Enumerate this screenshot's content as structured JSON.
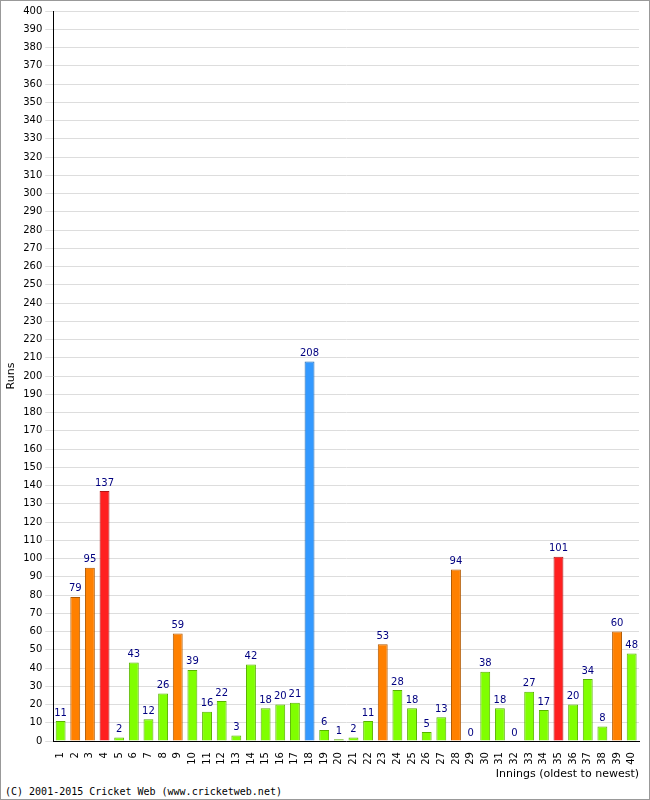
{
  "chart_data": {
    "type": "bar",
    "y_label": "Runs",
    "x_label": "Innings (oldest to newest)",
    "annotations": [
      "(C) 2001-2015 Cricket Web (www.cricketweb.net)"
    ],
    "categories": [
      "1",
      "2",
      "3",
      "4",
      "5",
      "6",
      "7",
      "8",
      "9",
      "10",
      "11",
      "12",
      "13",
      "14",
      "15",
      "16",
      "17",
      "18",
      "19",
      "20",
      "21",
      "22",
      "23",
      "24",
      "25",
      "26",
      "27",
      "28",
      "29",
      "30",
      "31",
      "32",
      "33",
      "34",
      "35",
      "36",
      "37",
      "38",
      "39",
      "40"
    ],
    "values": [
      11,
      79,
      95,
      137,
      2,
      43,
      12,
      26,
      59,
      39,
      16,
      22,
      3,
      42,
      18,
      20,
      21,
      208,
      6,
      1,
      2,
      11,
      53,
      28,
      18,
      5,
      13,
      94,
      0,
      38,
      18,
      0,
      27,
      17,
      101,
      20,
      34,
      8,
      60,
      48
    ],
    "colors": [
      "#80ff00",
      "#ff8000",
      "#ff8000",
      "#ff2020",
      "#80ff00",
      "#80ff00",
      "#80ff00",
      "#80ff00",
      "#ff8000",
      "#80ff00",
      "#80ff00",
      "#80ff00",
      "#80ff00",
      "#80ff00",
      "#80ff00",
      "#80ff00",
      "#80ff00",
      "#3399ff",
      "#80ff00",
      "#80ff00",
      "#80ff00",
      "#80ff00",
      "#ff8000",
      "#80ff00",
      "#80ff00",
      "#80ff00",
      "#80ff00",
      "#ff8000",
      "#80ff00",
      "#80ff00",
      "#80ff00",
      "#80ff00",
      "#80ff00",
      "#80ff00",
      "#ff2020",
      "#80ff00",
      "#80ff00",
      "#80ff00",
      "#ff8000",
      "#80ff00"
    ],
    "ylim": [
      0,
      400
    ],
    "yticks": [
      0,
      10,
      20,
      30,
      40,
      50,
      60,
      70,
      80,
      90,
      100,
      110,
      120,
      130,
      140,
      150,
      160,
      170,
      180,
      190,
      200,
      210,
      220,
      230,
      240,
      250,
      260,
      270,
      280,
      290,
      300,
      310,
      320,
      330,
      340,
      350,
      360,
      370,
      380,
      390,
      400
    ],
    "grid": true,
    "data_labels": true
  }
}
